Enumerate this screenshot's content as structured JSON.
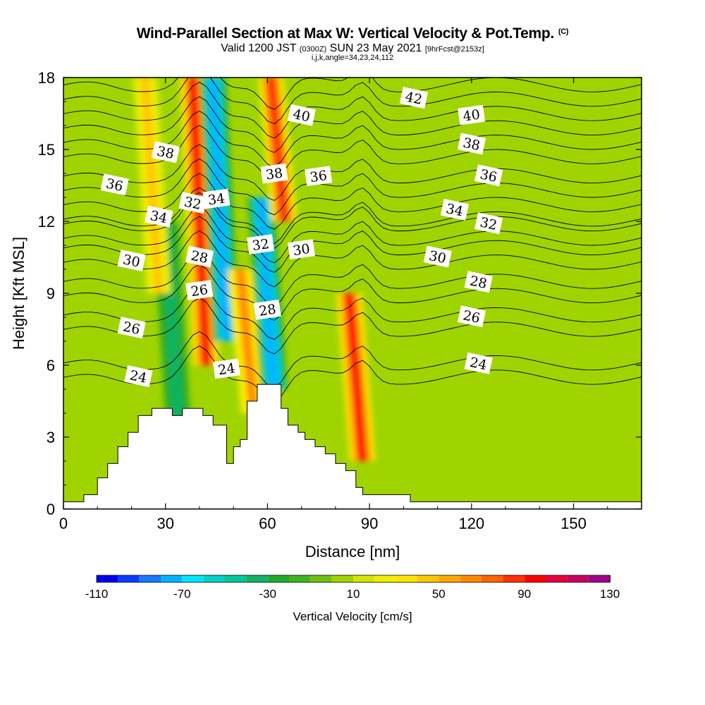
{
  "header": {
    "title": "Wind-Parallel Section at Max W: Vertical Velocity & Pot.Temp.",
    "copyright_mark": "(C)",
    "valid_prefix": "Valid 1200 JST",
    "valid_utc": "(0300Z)",
    "valid_date": "SUN 23 May 2021",
    "forecast_note": "[9hrFcst@2153z]",
    "section_params": "i,j,k,angle=34,23,24,112"
  },
  "chart_data": {
    "type": "heatmap",
    "title": "Wind-Parallel Section at Max W: Vertical Velocity & Pot.Temp.",
    "xlabel": "Distance [nm]",
    "ylabel": "Height [Kft MSL]",
    "xlim": [
      0,
      170
    ],
    "ylim": [
      0,
      18
    ],
    "x_ticks": [
      "0",
      "30",
      "60",
      "90",
      "120",
      "150"
    ],
    "x_tick_values": [
      0,
      30,
      60,
      90,
      120,
      150
    ],
    "y_ticks": [
      "0",
      "3",
      "6",
      "9",
      "12",
      "15",
      "18"
    ],
    "y_tick_values": [
      0,
      3,
      6,
      9,
      12,
      15,
      18
    ],
    "colorbar": {
      "label": "Vertical Velocity [cm/s]",
      "tick_labels": [
        "-110",
        "-70",
        "-30",
        "10",
        "50",
        "90",
        "130"
      ],
      "tick_values": [
        -110,
        -70,
        -30,
        10,
        50,
        90,
        130
      ],
      "levels": [
        -110,
        -100,
        -90,
        -80,
        -70,
        -60,
        -50,
        -40,
        -30,
        -20,
        -10,
        0,
        10,
        20,
        30,
        40,
        50,
        60,
        70,
        80,
        90,
        100,
        110,
        120,
        130
      ],
      "colors": [
        "#0000f0",
        "#0a3cff",
        "#1a78ff",
        "#00b4ff",
        "#00e6ff",
        "#00d2c8",
        "#00c896",
        "#10b464",
        "#20aa30",
        "#40b420",
        "#70c010",
        "#a0d400",
        "#d2e600",
        "#f0f000",
        "#ffe600",
        "#ffc800",
        "#ffaa00",
        "#ff8c00",
        "#ff6400",
        "#ff3200",
        "#ff0000",
        "#e6003c",
        "#c80064",
        "#a0008c",
        "#780096"
      ]
    },
    "terrain_profile": {
      "x": [
        0,
        6,
        6,
        10,
        10,
        13,
        13,
        16,
        16,
        19,
        19,
        22,
        22,
        26,
        26,
        29,
        29,
        32,
        32,
        35,
        35,
        38,
        38,
        41,
        41,
        44,
        44,
        48,
        48,
        50,
        50,
        52,
        52,
        54,
        54,
        57,
        57,
        59,
        59,
        61,
        61,
        64,
        64,
        66,
        66,
        69,
        69,
        71,
        71,
        74,
        74,
        77,
        77,
        80,
        80,
        83,
        83,
        86,
        86,
        88,
        88,
        91,
        91,
        94,
        94,
        98,
        98,
        102,
        102,
        105,
        105,
        170
      ],
      "height_kft": [
        0.3,
        0.3,
        0.6,
        0.6,
        1.3,
        1.3,
        1.9,
        1.9,
        2.6,
        2.6,
        3.2,
        3.2,
        3.9,
        3.9,
        4.2,
        4.2,
        4.2,
        4.2,
        3.9,
        3.9,
        4.2,
        4.2,
        4.2,
        4.2,
        3.9,
        3.9,
        3.5,
        3.5,
        1.9,
        1.9,
        2.6,
        2.6,
        2.9,
        2.9,
        4.5,
        4.5,
        5.2,
        5.2,
        5.2,
        5.2,
        5.2,
        5.2,
        4.2,
        4.2,
        3.5,
        3.5,
        3.2,
        3.2,
        2.9,
        2.9,
        2.6,
        2.6,
        2.3,
        2.3,
        1.9,
        1.9,
        1.6,
        1.6,
        0.9,
        0.9,
        0.6,
        0.6,
        0.6,
        0.6,
        0.6,
        0.6,
        0.6,
        0.6,
        0.3,
        0.3,
        0.3,
        0.3
      ]
    },
    "vertical_velocity_features": [
      {
        "kind": "updraft",
        "x_nm": 42,
        "height_kft": [
          6,
          18
        ],
        "peak_cm_s": 90
      },
      {
        "kind": "downdraft",
        "x_nm": 48,
        "height_kft": [
          7,
          18
        ],
        "peak_cm_s": -80
      },
      {
        "kind": "updraft",
        "x_nm": 56,
        "height_kft": [
          4,
          10
        ],
        "peak_cm_s": 60
      },
      {
        "kind": "downdraft",
        "x_nm": 62,
        "height_kft": [
          5,
          13
        ],
        "peak_cm_s": -80
      },
      {
        "kind": "updraft",
        "x_nm": 65,
        "height_kft": [
          12,
          18
        ],
        "peak_cm_s": 80
      },
      {
        "kind": "updraft",
        "x_nm": 88,
        "height_kft": [
          2,
          9
        ],
        "peak_cm_s": 90
      },
      {
        "kind": "downdraft",
        "x_nm": 34,
        "height_kft": [
          3,
          12
        ],
        "peak_cm_s": -40
      },
      {
        "kind": "updraft",
        "x_nm": 28,
        "height_kft": [
          9,
          18
        ],
        "peak_cm_s": 40
      }
    ],
    "potential_temperature_contours": [
      {
        "value": 24,
        "labels": [
          "24",
          "24",
          "24"
        ]
      },
      {
        "value": 26,
        "labels": [
          "26",
          "26",
          "26"
        ]
      },
      {
        "value": 28,
        "labels": [
          "28",
          "28",
          "28"
        ]
      },
      {
        "value": 30,
        "labels": [
          "30",
          "30",
          "30"
        ]
      },
      {
        "value": 32,
        "labels": [
          "32",
          "32",
          "32"
        ]
      },
      {
        "value": 34,
        "labels": [
          "34",
          "34",
          "34"
        ]
      },
      {
        "value": 36,
        "labels": [
          "36",
          "36",
          "36"
        ]
      },
      {
        "value": 38,
        "labels": [
          "38",
          "38",
          "38"
        ]
      },
      {
        "value": 40,
        "labels": [
          "40",
          "40"
        ]
      },
      {
        "value": 42,
        "labels": [
          "42"
        ]
      }
    ],
    "grid": false,
    "legend": "bottom"
  }
}
